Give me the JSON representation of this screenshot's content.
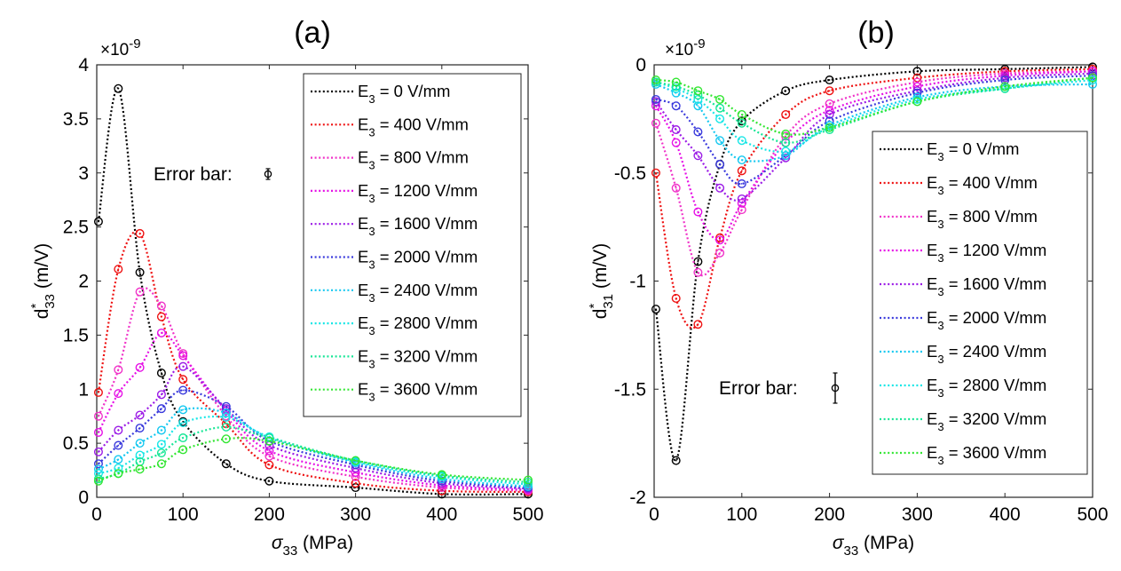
{
  "colors": [
    "#000000",
    "#ee1111",
    "#f032c8",
    "#e60fe6",
    "#9b1be6",
    "#3a3adc",
    "#14c8f0",
    "#17e6e6",
    "#17e696",
    "#32e632"
  ],
  "chart_data": [
    {
      "type": "line",
      "title": "(a)",
      "xlabel": {
        "main": "σ",
        "sub": "33",
        "unit": " (MPa)"
      },
      "ylabel": {
        "main": "d",
        "sup": "*",
        "sub": "33",
        "unit": " (m/V)"
      },
      "y_multiplier": {
        "prefix": "×10",
        "exp": "-9"
      },
      "xlim": [
        0,
        500
      ],
      "ylim": [
        0,
        4
      ],
      "xticks": [
        0,
        100,
        200,
        300,
        400,
        500
      ],
      "yticks": [
        0,
        0.5,
        1,
        1.5,
        2,
        2.5,
        3,
        3.5,
        4
      ],
      "ytick_labels": [
        "0",
        "0.5",
        "1",
        "1.5",
        "2",
        "2.5",
        "3",
        "3.5",
        "4"
      ],
      "error_bar_label": "Error bar:",
      "legend_position": "top-right",
      "x": [
        2,
        25,
        50,
        75,
        100,
        150,
        200,
        300,
        400,
        500
      ],
      "series": [
        {
          "name": "E = 0 V/mm",
          "sub": "3",
          "prefix": "E",
          "rest": " = 0 V/mm",
          "values": [
            2.55,
            3.78,
            2.08,
            1.15,
            0.7,
            0.31,
            0.15,
            0.09,
            0.03,
            0.03
          ]
        },
        {
          "name": "E = 400 V/mm",
          "sub": "3",
          "prefix": "E",
          "rest": " = 400 V/mm",
          "values": [
            0.97,
            2.11,
            2.44,
            1.67,
            1.09,
            0.68,
            0.3,
            0.13,
            0.06,
            0.05
          ]
        },
        {
          "name": "E = 800 V/mm",
          "sub": "3",
          "prefix": "E",
          "rest": " = 800 V/mm",
          "values": [
            0.75,
            1.18,
            1.9,
            1.77,
            1.33,
            0.75,
            0.38,
            0.19,
            0.09,
            0.06
          ]
        },
        {
          "name": "E = 1200 V/mm",
          "sub": "3",
          "prefix": "E",
          "rest": " = 1200 V/mm",
          "values": [
            0.6,
            0.96,
            1.2,
            1.52,
            1.31,
            0.8,
            0.43,
            0.23,
            0.11,
            0.07
          ]
        },
        {
          "name": "E = 1600 V/mm",
          "sub": "3",
          "prefix": "E",
          "rest": " = 1600 V/mm",
          "values": [
            0.42,
            0.62,
            0.76,
            0.95,
            1.21,
            0.82,
            0.48,
            0.27,
            0.13,
            0.08
          ]
        },
        {
          "name": "E = 2000 V/mm",
          "sub": "3",
          "prefix": "E",
          "rest": " = 2000 V/mm",
          "values": [
            0.31,
            0.48,
            0.64,
            0.82,
            0.99,
            0.84,
            0.52,
            0.3,
            0.15,
            0.09
          ]
        },
        {
          "name": "E = 2400 V/mm",
          "sub": "3",
          "prefix": "E",
          "rest": " = 2400 V/mm",
          "values": [
            0.26,
            0.35,
            0.5,
            0.62,
            0.81,
            0.78,
            0.55,
            0.32,
            0.17,
            0.1
          ]
        },
        {
          "name": "E = 2800 V/mm",
          "sub": "3",
          "prefix": "E",
          "rest": " = 2800 V/mm",
          "values": [
            0.22,
            0.27,
            0.39,
            0.49,
            0.69,
            0.74,
            0.56,
            0.33,
            0.19,
            0.12
          ]
        },
        {
          "name": "E = 3200 V/mm",
          "sub": "3",
          "prefix": "E",
          "rest": " = 3200 V/mm",
          "values": [
            0.17,
            0.22,
            0.33,
            0.41,
            0.55,
            0.65,
            0.55,
            0.34,
            0.2,
            0.14
          ]
        },
        {
          "name": "E = 3600 V/mm",
          "sub": "3",
          "prefix": "E",
          "rest": " = 3600 V/mm",
          "values": [
            0.15,
            0.22,
            0.26,
            0.31,
            0.44,
            0.54,
            0.52,
            0.34,
            0.21,
            0.16
          ]
        }
      ]
    },
    {
      "type": "line",
      "title": "(b)",
      "xlabel": {
        "main": "σ",
        "sub": "33",
        "unit": " (MPa)"
      },
      "ylabel": {
        "main": "d",
        "sup": "*",
        "sub": "31",
        "unit": " (m/V)"
      },
      "y_multiplier": {
        "prefix": "×10",
        "exp": "-9"
      },
      "xlim": [
        0,
        500
      ],
      "ylim": [
        -2,
        0
      ],
      "xticks": [
        0,
        100,
        200,
        300,
        400,
        500
      ],
      "yticks": [
        -2,
        -1.5,
        -1,
        -0.5,
        0
      ],
      "ytick_labels": [
        "-2",
        "-1.5",
        "-1",
        "-0.5",
        "0"
      ],
      "error_bar_label": "Error bar:",
      "legend_position": "right",
      "x": [
        2,
        25,
        50,
        75,
        100,
        150,
        200,
        300,
        400,
        500
      ],
      "series": [
        {
          "name": "E = 0 V/mm",
          "sub": "3",
          "prefix": "E",
          "rest": " = 0 V/mm",
          "values": [
            -1.13,
            -1.83,
            -0.91,
            -0.46,
            -0.26,
            -0.12,
            -0.07,
            -0.03,
            -0.02,
            -0.01
          ]
        },
        {
          "name": "E = 400 V/mm",
          "sub": "3",
          "prefix": "E",
          "rest": " = 400 V/mm",
          "values": [
            -0.5,
            -1.08,
            -1.2,
            -0.8,
            -0.49,
            -0.23,
            -0.12,
            -0.06,
            -0.03,
            -0.02
          ]
        },
        {
          "name": "E = 800 V/mm",
          "sub": "3",
          "prefix": "E",
          "rest": " = 800 V/mm",
          "values": [
            -0.27,
            -0.57,
            -0.96,
            -0.87,
            -0.67,
            -0.33,
            -0.18,
            -0.08,
            -0.04,
            -0.03
          ]
        },
        {
          "name": "E = 1200 V/mm",
          "sub": "3",
          "prefix": "E",
          "rest": " = 1200 V/mm",
          "values": [
            -0.19,
            -0.36,
            -0.68,
            -0.81,
            -0.64,
            -0.36,
            -0.21,
            -0.1,
            -0.05,
            -0.03
          ]
        },
        {
          "name": "E = 1600 V/mm",
          "sub": "3",
          "prefix": "E",
          "rest": " = 1600 V/mm",
          "values": [
            -0.17,
            -0.3,
            -0.42,
            -0.57,
            -0.62,
            -0.43,
            -0.23,
            -0.12,
            -0.06,
            -0.04
          ]
        },
        {
          "name": "E = 2000 V/mm",
          "sub": "3",
          "prefix": "E",
          "rest": " = 2000 V/mm",
          "values": [
            -0.16,
            -0.19,
            -0.31,
            -0.46,
            -0.55,
            -0.42,
            -0.26,
            -0.13,
            -0.07,
            -0.05
          ]
        },
        {
          "name": "E = 2400 V/mm",
          "sub": "3",
          "prefix": "E",
          "rest": " = 2400 V/mm",
          "values": [
            -0.09,
            -0.13,
            -0.19,
            -0.35,
            -0.44,
            -0.42,
            -0.28,
            -0.15,
            -0.1,
            -0.09
          ]
        },
        {
          "name": "E = 2800 V/mm",
          "sub": "3",
          "prefix": "E",
          "rest": " = 2800 V/mm",
          "values": [
            -0.08,
            -0.11,
            -0.16,
            -0.25,
            -0.35,
            -0.4,
            -0.29,
            -0.16,
            -0.11,
            -0.07
          ]
        },
        {
          "name": "E = 3200 V/mm",
          "sub": "3",
          "prefix": "E",
          "rest": " = 3200 V/mm",
          "values": [
            -0.08,
            -0.1,
            -0.14,
            -0.2,
            -0.27,
            -0.36,
            -0.3,
            -0.17,
            -0.11,
            -0.06
          ]
        },
        {
          "name": "E = 3600 V/mm",
          "sub": "3",
          "prefix": "E",
          "rest": " = 3600 V/mm",
          "values": [
            -0.07,
            -0.08,
            -0.12,
            -0.16,
            -0.23,
            -0.32,
            -0.29,
            -0.17,
            -0.1,
            -0.06
          ]
        }
      ]
    }
  ]
}
